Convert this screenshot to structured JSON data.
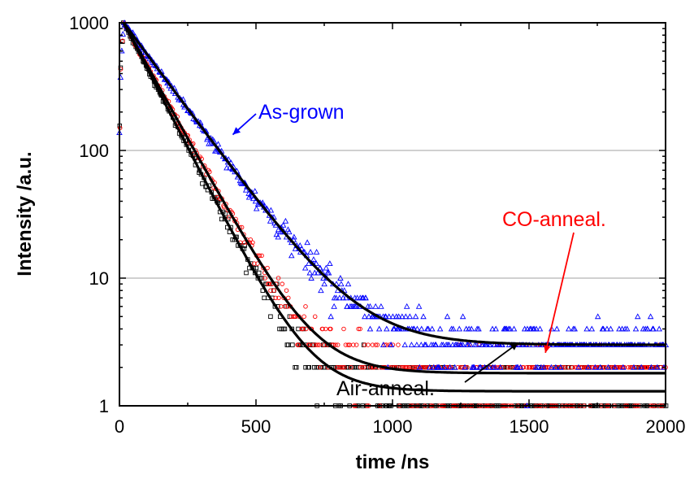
{
  "chart_data": {
    "type": "scatter",
    "title": "",
    "xlabel": "time /ns",
    "ylabel": "Intensity /a.u.",
    "xlim": [
      0,
      2000
    ],
    "ylim": [
      1,
      1000
    ],
    "yscale": "log",
    "grid": "horizontal",
    "xticks": [
      "0",
      "500",
      "1000",
      "1500",
      "2000"
    ],
    "yticks": [
      "1",
      "10",
      "100",
      "1000"
    ],
    "colors": {
      "as_grown": "#0000ff",
      "co_anneal": "#ff0000",
      "air_anneal": "#000000",
      "fit": "#000000"
    },
    "series": [
      {
        "label": "As-grown",
        "marker": "triangle",
        "tau_ns": 150,
        "background": 3
      },
      {
        "label": "CO-anneal.",
        "marker": "circle",
        "tau_ns": 112,
        "background": 1.8
      },
      {
        "label": "Air-anneal.",
        "marker": "square",
        "tau_ns": 104,
        "background": 1.3
      }
    ],
    "annotations": [
      {
        "text": "As-grown",
        "color": "#0000ff",
        "arrow_to": [
          415,
          133
        ]
      },
      {
        "text": "CO-anneal.",
        "color": "#ff0000",
        "arrow_to": [
          1560,
          2.6
        ]
      },
      {
        "text": "Air-anneal.",
        "color": "#000000",
        "arrow_to": [
          1460,
          3.1
        ]
      }
    ]
  }
}
